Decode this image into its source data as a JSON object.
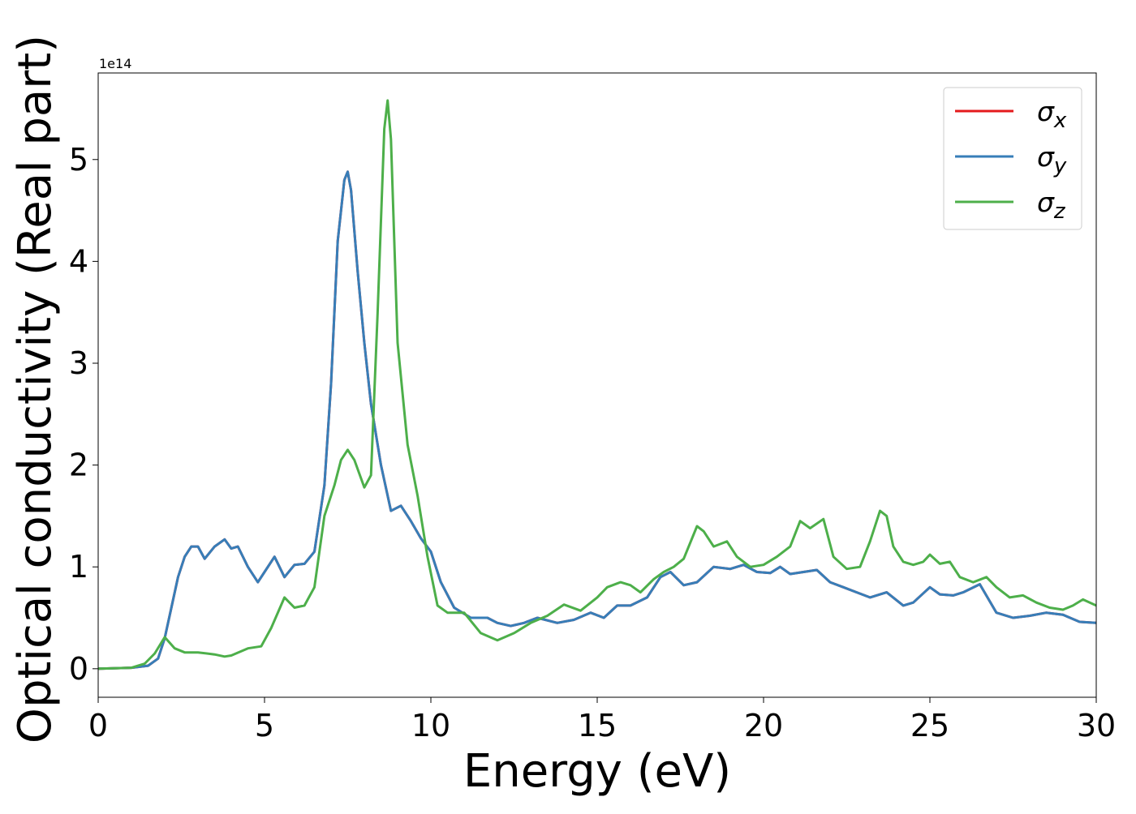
{
  "chart_data": {
    "type": "line",
    "title": "",
    "xlabel": "Energy (eV)",
    "ylabel": "Optical conductivity (Real part)",
    "xlim": [
      0,
      30
    ],
    "ylim": [
      -0.28,
      5.85
    ],
    "y_scale_text": "1e14",
    "x_ticks": [
      0,
      5,
      10,
      15,
      20,
      25,
      30
    ],
    "y_ticks": [
      0,
      1,
      2,
      3,
      4,
      5
    ],
    "grid": false,
    "legend_position": "top-right",
    "series": [
      {
        "name": "σx",
        "name_base": "σ",
        "name_sub": "x",
        "color": "#e41a1c",
        "x": [
          0,
          1,
          1.5,
          1.8,
          2.0,
          2.2,
          2.4,
          2.6,
          2.8,
          3.0,
          3.2,
          3.5,
          3.8,
          4.0,
          4.2,
          4.5,
          4.8,
          5.0,
          5.3,
          5.6,
          5.9,
          6.2,
          6.5,
          6.8,
          7.0,
          7.2,
          7.4,
          7.5,
          7.6,
          7.8,
          8.0,
          8.2,
          8.5,
          8.8,
          9.1,
          9.4,
          9.7,
          10.0,
          10.3,
          10.7,
          11.2,
          11.7,
          12.0,
          12.4,
          12.8,
          13.2,
          13.8,
          14.3,
          14.8,
          15.2,
          15.6,
          16.0,
          16.5,
          16.9,
          17.2,
          17.6,
          18.0,
          18.5,
          19.0,
          19.4,
          19.8,
          20.2,
          20.5,
          20.8,
          21.2,
          21.6,
          22.0,
          22.4,
          22.8,
          23.2,
          23.7,
          24.2,
          24.5,
          25.0,
          25.3,
          25.7,
          26.0,
          26.5,
          27.0,
          27.5,
          28.0,
          28.5,
          29.0,
          29.5,
          30.0
        ],
        "y": [
          0,
          0.01,
          0.03,
          0.1,
          0.3,
          0.6,
          0.9,
          1.1,
          1.2,
          1.2,
          1.08,
          1.2,
          1.27,
          1.18,
          1.2,
          1.0,
          0.85,
          0.95,
          1.1,
          0.9,
          1.02,
          1.03,
          1.15,
          1.8,
          2.8,
          4.2,
          4.8,
          4.88,
          4.7,
          3.9,
          3.2,
          2.6,
          2.0,
          1.55,
          1.6,
          1.45,
          1.28,
          1.15,
          0.85,
          0.6,
          0.5,
          0.5,
          0.45,
          0.42,
          0.45,
          0.5,
          0.45,
          0.48,
          0.55,
          0.5,
          0.62,
          0.62,
          0.7,
          0.9,
          0.95,
          0.82,
          0.85,
          1.0,
          0.98,
          1.02,
          0.95,
          0.94,
          1.0,
          0.93,
          0.95,
          0.97,
          0.85,
          0.8,
          0.75,
          0.7,
          0.75,
          0.62,
          0.65,
          0.8,
          0.73,
          0.72,
          0.75,
          0.83,
          0.55,
          0.5,
          0.52,
          0.55,
          0.53,
          0.46,
          0.45
        ]
      },
      {
        "name": "σy",
        "name_base": "σ",
        "name_sub": "y",
        "color": "#377eb8",
        "x": [
          0,
          1,
          1.5,
          1.8,
          2.0,
          2.2,
          2.4,
          2.6,
          2.8,
          3.0,
          3.2,
          3.5,
          3.8,
          4.0,
          4.2,
          4.5,
          4.8,
          5.0,
          5.3,
          5.6,
          5.9,
          6.2,
          6.5,
          6.8,
          7.0,
          7.2,
          7.4,
          7.5,
          7.6,
          7.8,
          8.0,
          8.2,
          8.5,
          8.8,
          9.1,
          9.4,
          9.7,
          10.0,
          10.3,
          10.7,
          11.2,
          11.7,
          12.0,
          12.4,
          12.8,
          13.2,
          13.8,
          14.3,
          14.8,
          15.2,
          15.6,
          16.0,
          16.5,
          16.9,
          17.2,
          17.6,
          18.0,
          18.5,
          19.0,
          19.4,
          19.8,
          20.2,
          20.5,
          20.8,
          21.2,
          21.6,
          22.0,
          22.4,
          22.8,
          23.2,
          23.7,
          24.2,
          24.5,
          25.0,
          25.3,
          25.7,
          26.0,
          26.5,
          27.0,
          27.5,
          28.0,
          28.5,
          29.0,
          29.5,
          30.0
        ],
        "y": [
          0,
          0.01,
          0.03,
          0.1,
          0.3,
          0.6,
          0.9,
          1.1,
          1.2,
          1.2,
          1.08,
          1.2,
          1.27,
          1.18,
          1.2,
          1.0,
          0.85,
          0.95,
          1.1,
          0.9,
          1.02,
          1.03,
          1.15,
          1.8,
          2.8,
          4.2,
          4.8,
          4.88,
          4.7,
          3.9,
          3.2,
          2.6,
          2.0,
          1.55,
          1.6,
          1.45,
          1.28,
          1.15,
          0.85,
          0.6,
          0.5,
          0.5,
          0.45,
          0.42,
          0.45,
          0.5,
          0.45,
          0.48,
          0.55,
          0.5,
          0.62,
          0.62,
          0.7,
          0.9,
          0.95,
          0.82,
          0.85,
          1.0,
          0.98,
          1.02,
          0.95,
          0.94,
          1.0,
          0.93,
          0.95,
          0.97,
          0.85,
          0.8,
          0.75,
          0.7,
          0.75,
          0.62,
          0.65,
          0.8,
          0.73,
          0.72,
          0.75,
          0.83,
          0.55,
          0.5,
          0.52,
          0.55,
          0.53,
          0.46,
          0.45
        ]
      },
      {
        "name": "σz",
        "name_base": "σ",
        "name_sub": "z",
        "color": "#4daf4a",
        "x": [
          0,
          1.0,
          1.4,
          1.7,
          2.0,
          2.3,
          2.6,
          3.0,
          3.5,
          3.8,
          4.0,
          4.5,
          4.9,
          5.2,
          5.6,
          5.9,
          6.2,
          6.5,
          6.8,
          7.1,
          7.3,
          7.5,
          7.7,
          8.0,
          8.2,
          8.4,
          8.6,
          8.7,
          8.8,
          9.0,
          9.3,
          9.6,
          9.9,
          10.2,
          10.5,
          11.0,
          11.5,
          12.0,
          12.5,
          13.0,
          13.5,
          14.0,
          14.5,
          15.0,
          15.3,
          15.7,
          16.0,
          16.3,
          16.7,
          17.0,
          17.3,
          17.6,
          18.0,
          18.2,
          18.5,
          18.9,
          19.2,
          19.6,
          20.0,
          20.4,
          20.8,
          21.1,
          21.4,
          21.8,
          22.1,
          22.5,
          22.9,
          23.2,
          23.5,
          23.7,
          23.9,
          24.2,
          24.5,
          24.8,
          25.0,
          25.3,
          25.6,
          25.9,
          26.3,
          26.7,
          27.0,
          27.4,
          27.8,
          28.2,
          28.6,
          29.0,
          29.3,
          29.6,
          30.0
        ],
        "y": [
          0,
          0.01,
          0.05,
          0.15,
          0.31,
          0.2,
          0.16,
          0.16,
          0.14,
          0.12,
          0.13,
          0.2,
          0.22,
          0.4,
          0.7,
          0.6,
          0.62,
          0.8,
          1.5,
          1.8,
          2.05,
          2.15,
          2.05,
          1.78,
          1.9,
          3.5,
          5.3,
          5.58,
          5.2,
          3.2,
          2.2,
          1.7,
          1.1,
          0.62,
          0.55,
          0.55,
          0.35,
          0.28,
          0.35,
          0.45,
          0.52,
          0.63,
          0.57,
          0.7,
          0.8,
          0.85,
          0.82,
          0.75,
          0.88,
          0.95,
          1.0,
          1.08,
          1.4,
          1.35,
          1.2,
          1.25,
          1.1,
          1.0,
          1.02,
          1.1,
          1.2,
          1.45,
          1.38,
          1.47,
          1.1,
          0.98,
          1.0,
          1.25,
          1.55,
          1.5,
          1.2,
          1.05,
          1.02,
          1.05,
          1.12,
          1.03,
          1.05,
          0.9,
          0.85,
          0.9,
          0.8,
          0.7,
          0.72,
          0.65,
          0.6,
          0.58,
          0.62,
          0.68,
          0.62
        ]
      }
    ]
  }
}
